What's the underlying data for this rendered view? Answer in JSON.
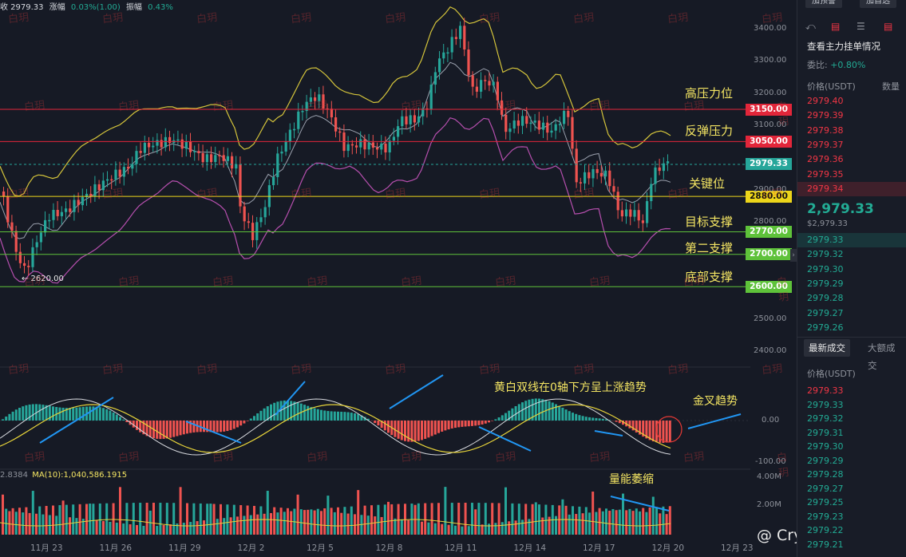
{
  "topbar": {
    "close": "收 2979.33",
    "change_label": "涨幅",
    "change_value": "0.03%(1.00)",
    "amplitude_label": "振幅",
    "amplitude_value": "0.43%"
  },
  "annotations": {
    "high_resistance": "高压力位",
    "rebound_resistance": "反弹压力",
    "key_level": "关键位",
    "target_support": "目标支撑",
    "second_support": "第二支撑",
    "bottom_support": "底部支撑",
    "macd_note": "黄白双线在0轴下方呈上涨趋势",
    "golden_cross": "金叉趋势",
    "volume_note": "量能萎缩",
    "low_marker": "← 2620.00"
  },
  "price_levels": [
    {
      "label": "3150.00",
      "value": 3150,
      "color": "#e2263a"
    },
    {
      "label": "3050.00",
      "value": 3050,
      "color": "#e2263a"
    },
    {
      "label": "2979.33",
      "value": 2979.33,
      "color": "#26a69a"
    },
    {
      "label": "2880.00",
      "value": 2880,
      "color": "#ecd51a"
    },
    {
      "label": "2770.00",
      "value": 2770,
      "color": "#5ec23a"
    },
    {
      "label": "2700.00",
      "value": 2700,
      "color": "#5ec23a"
    },
    {
      "label": "2600.00",
      "value": 2600,
      "color": "#5ec23a"
    }
  ],
  "price_axis": [
    "3400.00",
    "3300.00",
    "3200.00",
    "3100.00",
    "2900.00",
    "2800.00",
    "2500.00",
    "2400.00"
  ],
  "macd_axis": [
    "0.00",
    "-100.00"
  ],
  "volume_axis": [
    "4.00M",
    "2.00M"
  ],
  "x_axis": [
    "11月 23",
    "11月 26",
    "11月 29",
    "12月 2",
    "12月 5",
    "12月 8",
    "12月 11",
    "12月 14",
    "12月 17",
    "12月 20",
    "12月 23"
  ],
  "volume_ma": {
    "prefix": "2.8384",
    "label": "MA(10):1,040,586.1915"
  },
  "watermark_text": "白玥",
  "brand": "@ Crypto白玥",
  "side": {
    "btn_left": "加预警",
    "btn_right": "加自选",
    "orders_title": "查看主力挂单情况",
    "ratio_label": "委比:",
    "ratio_value": "+0.80%",
    "col_price": "价格(USDT)",
    "col_qty": "数量",
    "asks": [
      "2979.40",
      "2979.39",
      "2979.38",
      "2979.37",
      "2979.36",
      "2979.35",
      "2979.34"
    ],
    "last_price": "2,979.33",
    "last_price_sub": "$2,979.33",
    "bids": [
      "2979.33",
      "2979.32",
      "2979.30",
      "2979.29",
      "2979.28",
      "2979.27",
      "2979.26"
    ],
    "tab_latest": "最新成交",
    "tab_big": "大额成交",
    "trades_col": "价格(USDT)",
    "trades": [
      {
        "p": "2979.33",
        "c": "red"
      },
      {
        "p": "2979.33",
        "c": "green"
      },
      {
        "p": "2979.32",
        "c": "green"
      },
      {
        "p": "2979.31",
        "c": "green"
      },
      {
        "p": "2979.30",
        "c": "green"
      },
      {
        "p": "2979.29",
        "c": "green"
      },
      {
        "p": "2979.28",
        "c": "green"
      },
      {
        "p": "2979.27",
        "c": "green"
      },
      {
        "p": "2979.25",
        "c": "green"
      },
      {
        "p": "2979.23",
        "c": "green"
      },
      {
        "p": "2979.22",
        "c": "green"
      },
      {
        "p": "2979.21",
        "c": "green"
      }
    ]
  },
  "colors": {
    "up": "#26a69a",
    "down": "#ef5350",
    "boll_mid": "#9aa0ad",
    "boll_upper": "#d4c43b",
    "boll_lower": "#b64fae"
  }
}
